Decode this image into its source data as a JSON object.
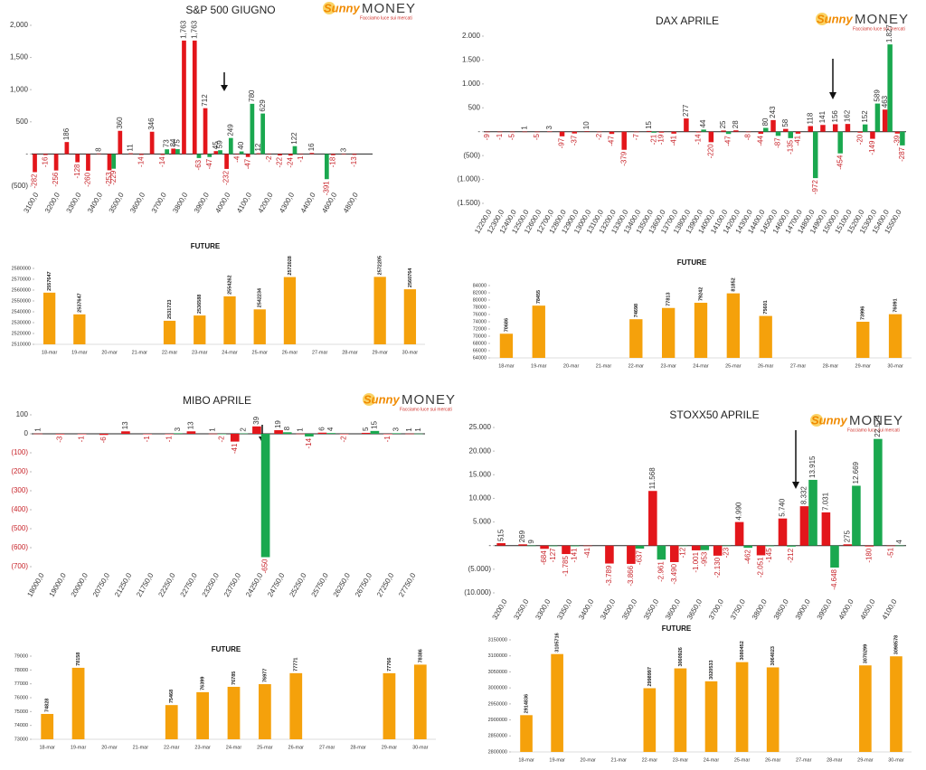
{
  "logo": {
    "brand": "Sunny",
    "brand2": "MONEY",
    "tagline": "Facciamo luce sui mercati"
  },
  "chart_data": [
    {
      "type": "bar",
      "title": "S&P 500 GIUGNO",
      "categories": [
        "3100,0",
        null,
        "3200,0",
        null,
        "3300,0",
        null,
        "3400,0",
        null,
        "3500,0",
        null,
        "3600,0",
        null,
        "3700,0",
        null,
        "3800,0",
        null,
        "3900,0",
        null,
        "4000,0",
        null,
        "4100,0",
        null,
        "4200,0",
        null,
        "4300,0",
        null,
        "4400,0",
        null,
        "4600,0",
        null,
        "4800,0",
        null
      ],
      "series": [
        {
          "color": "#e3161b",
          "values": [
            -282,
            -16,
            -256,
            186,
            -128,
            -260,
            8,
            -253,
            360,
            11,
            -14,
            346,
            -14,
            84,
            1763,
            1763,
            712,
            45,
            -232,
            -4,
            -47,
            12,
            -2,
            -22,
            -24,
            -1,
            16,
            null,
            -18,
            3,
            -13,
            null
          ],
          "value_labels": [
            "-282",
            "-16",
            "-256",
            "186",
            "-128",
            "-260",
            "8",
            "-253",
            "360",
            "11",
            "-14",
            "346",
            "-14",
            "84",
            "1,763",
            "1,763",
            "712",
            "45",
            "-232",
            "-4",
            "-47",
            "12",
            "-2",
            "-22",
            "-24",
            "-1",
            "16",
            null,
            "-18",
            "3",
            "-13",
            null
          ]
        },
        {
          "color": "#1aa84f",
          "values": [
            null,
            null,
            null,
            null,
            null,
            null,
            null,
            -229,
            null,
            null,
            null,
            null,
            73,
            75,
            null,
            -63,
            -47,
            59,
            249,
            40,
            780,
            629,
            null,
            null,
            122,
            null,
            null,
            -391,
            null,
            null,
            null,
            null
          ],
          "value_labels": [
            null,
            null,
            null,
            null,
            null,
            null,
            null,
            "-229",
            null,
            null,
            null,
            null,
            "73",
            "75",
            null,
            "-63",
            "-47",
            "59",
            "249",
            "40",
            "780",
            "629",
            null,
            null,
            "122",
            null,
            null,
            "-391",
            null,
            null,
            null,
            null
          ]
        }
      ],
      "ylim": [
        -500,
        2000
      ],
      "yticks": [
        {
          "value": -500,
          "label": "(500)"
        },
        {
          "value": 0,
          "label": "-"
        },
        500,
        {
          "value": 1000,
          "label": "1,000"
        },
        {
          "value": 1500,
          "label": "1,500"
        },
        {
          "value": 2000,
          "label": "2,000"
        }
      ]
    },
    {
      "type": "bar",
      "title": "FUTURE",
      "categories": [
        "18-mar",
        "19-mar",
        "20-mar",
        "21-mar",
        "22-mar",
        "23-mar",
        "24-mar",
        "25-mar",
        "26-mar",
        "27-mar",
        "28-mar",
        "29-mar",
        "30-mar"
      ],
      "values": [
        2557647,
        2537647,
        null,
        null,
        2531723,
        2536588,
        2554262,
        2542234,
        2572028,
        null,
        null,
        2572205,
        2560764
      ],
      "color": "#f5a10b",
      "ylim": [
        2510000,
        2580000
      ],
      "yticks": [
        2510000,
        2520000,
        2530000,
        2540000,
        2550000,
        2560000,
        2570000,
        2580000
      ]
    },
    {
      "type": "bar",
      "title": "MIBO APRILE",
      "categories": [
        "18000,0",
        "19000,0",
        "20000,0",
        "20750,0",
        "21250,0",
        "21750,0",
        "22250,0",
        "22750,0",
        "23250,0",
        "23750,0",
        "24250,0",
        "24750,0",
        "25250,0",
        "25750,0",
        "26250,0",
        "26750,0",
        "27250,0",
        "27750,0"
      ],
      "series": [
        {
          "color": "#e3161b",
          "values": [
            1,
            -3,
            -1,
            -6,
            13,
            -1,
            -1,
            13,
            1,
            -41,
            39,
            19,
            1,
            6,
            -2,
            5,
            -1,
            1
          ],
          "value_labels": [
            "1",
            "-3",
            "-1",
            "-6",
            "13",
            "-1",
            "-1",
            "13",
            "1",
            "-41",
            "39",
            "19",
            "1",
            "6",
            "-2",
            "5",
            "-1",
            "1"
          ]
        },
        {
          "color": "#1aa84f",
          "values": [
            null,
            null,
            null,
            null,
            null,
            null,
            3,
            null,
            -2,
            2,
            -650,
            8,
            -14,
            4,
            null,
            15,
            3,
            1
          ],
          "value_labels": [
            null,
            null,
            null,
            null,
            null,
            null,
            "3",
            null,
            "-2",
            "2",
            "-650",
            "8",
            "-14",
            "4",
            null,
            "15",
            "3",
            "1"
          ]
        }
      ],
      "ylim": [
        -700,
        100
      ],
      "yticks": [
        {
          "value": -700,
          "label": "(700)"
        },
        {
          "value": -600,
          "label": "(600)"
        },
        {
          "value": -500,
          "label": "(500)"
        },
        {
          "value": -400,
          "label": "(400)"
        },
        {
          "value": -300,
          "label": "(300)"
        },
        {
          "value": -200,
          "label": "(200)"
        },
        {
          "value": -100,
          "label": "(100)"
        },
        0,
        100
      ]
    },
    {
      "type": "bar",
      "title": "FUTURE",
      "categories": [
        "18-mar",
        "19-mar",
        "20-mar",
        "21-mar",
        "22-mar",
        "23-mar",
        "24-mar",
        "25-mar",
        "26-mar",
        "27-mar",
        "28-mar",
        "29-mar",
        "30-mar"
      ],
      "values": [
        74828,
        78158,
        null,
        null,
        75468,
        76399,
        76785,
        76977,
        77771,
        null,
        null,
        77766,
        78386
      ],
      "color": "#f5a10b",
      "ylim": [
        73000,
        79000
      ],
      "yticks": [
        73000,
        74000,
        75000,
        76000,
        77000,
        78000,
        79000
      ]
    },
    {
      "type": "bar",
      "title": "DAX APRILE",
      "categories": [
        "12200,0",
        "12300,0",
        "12400,0",
        "12500,0",
        "12600,0",
        "12700,0",
        "12800,0",
        "12900,0",
        "13000,0",
        "13100,0",
        "13200,0",
        "13300,0",
        "13400,0",
        "13500,0",
        "13600,0",
        "13700,0",
        "13800,0",
        "13900,0",
        "14000,0",
        "14100,0",
        "14200,0",
        "14300,0",
        "14400,0",
        "14500,0",
        "14600,0",
        "14700,0",
        "14800,0",
        "14900,0",
        "15000,0",
        "15100,0",
        "15200,0",
        "15300,0",
        "15400,0",
        "15500,0"
      ],
      "series": [
        {
          "color": "#e3161b",
          "values": [
            -9,
            -1,
            -5,
            1,
            -5,
            3,
            -97,
            -37,
            10,
            -2,
            -47,
            -379,
            -7,
            15,
            -19,
            -41,
            277,
            -14,
            -220,
            25,
            28,
            -8,
            -44,
            243,
            58,
            -41,
            118,
            141,
            156,
            162,
            -20,
            -149,
            463,
            -39
          ],
          "value_labels": [
            "-9",
            "-1",
            "-5",
            "1",
            "-5",
            "3",
            "-97",
            "-37",
            "10",
            "-2",
            "-47",
            "-379",
            "-7",
            "15",
            "-19",
            "-41",
            "277",
            "-14",
            "-220",
            "25",
            "28",
            "-8",
            "-44",
            "243",
            "58",
            "-41",
            "118",
            "141",
            "156",
            "162",
            "-20",
            "-149",
            "463",
            "-39"
          ]
        },
        {
          "color": "#1aa84f",
          "values": [
            null,
            null,
            null,
            null,
            null,
            null,
            null,
            null,
            null,
            null,
            null,
            null,
            null,
            -21,
            null,
            null,
            null,
            44,
            null,
            -47,
            null,
            null,
            80,
            -87,
            -135,
            null,
            -972,
            null,
            -454,
            null,
            152,
            589,
            1827,
            -287
          ],
          "value_labels": [
            null,
            null,
            null,
            null,
            null,
            null,
            null,
            null,
            null,
            null,
            null,
            null,
            null,
            "-21",
            null,
            null,
            null,
            "44",
            null,
            "-47",
            null,
            null,
            "80",
            "-87",
            "-135",
            null,
            "-972",
            null,
            "-454",
            null,
            "152",
            "589",
            "1.827",
            "-287"
          ]
        }
      ],
      "ylim": [
        -1500,
        2000
      ],
      "yticks": [
        {
          "value": -1500,
          "label": "(1.500)"
        },
        {
          "value": -1000,
          "label": "(1.000)"
        },
        {
          "value": -500,
          "label": "(500)"
        },
        {
          "value": 0,
          "label": "-"
        },
        500,
        {
          "value": 1000,
          "label": "1.000"
        },
        {
          "value": 1500,
          "label": "1.500"
        },
        {
          "value": 2000,
          "label": "2.000"
        }
      ]
    },
    {
      "type": "bar",
      "title": "FUTURE",
      "categories": [
        "18-mar",
        "19-mar",
        "20-mar",
        "21-mar",
        "22-mar",
        "23-mar",
        "24-mar",
        "25-mar",
        "26-mar",
        "27-mar",
        "28-mar",
        "29-mar",
        "30-mar"
      ],
      "values": [
        70686,
        78455,
        null,
        null,
        74698,
        77813,
        79242,
        81852,
        75601,
        null,
        null,
        73996,
        76091
      ],
      "color": "#f5a10b",
      "ylim": [
        64000,
        84000
      ],
      "yticks": [
        64000,
        66000,
        68000,
        70000,
        72000,
        74000,
        76000,
        78000,
        80000,
        82000,
        84000
      ]
    },
    {
      "type": "bar",
      "title": "STOXX50 APRILE",
      "categories": [
        "3200,0",
        "3250,0",
        "3300,0",
        "3350,0",
        "3400,0",
        "3450,0",
        "3500,0",
        "3550,0",
        "3600,0",
        "3650,0",
        "3700,0",
        "3750,0",
        "3800,0",
        "3850,0",
        "3900,0",
        "3950,0",
        "4000,0",
        "4050,0",
        "4100,0"
      ],
      "series": [
        {
          "color": "#e3161b",
          "values": [
            515,
            269,
            -684,
            -1785,
            -41,
            -3789,
            -3866,
            11568,
            -3490,
            -1001,
            -2130,
            4990,
            -2051,
            5740,
            8332,
            7031,
            275,
            -180,
            -51
          ],
          "value_labels": [
            "515",
            "269",
            "-684",
            "-1.785",
            "-41",
            "-3.789",
            "-3.866",
            "11.568",
            "-3.490",
            "-1.001",
            "-2.130",
            "4.990",
            "-2.051",
            "5.740",
            "8.332",
            "7.031",
            "275",
            "-180",
            "-51"
          ]
        },
        {
          "color": "#1aa84f",
          "values": [
            null,
            9,
            -127,
            -141,
            null,
            null,
            -637,
            -2961,
            -12,
            -953,
            -23,
            -462,
            -145,
            -212,
            13915,
            -4648,
            12669,
            22574,
            4
          ],
          "value_labels": [
            null,
            "9",
            "-127",
            "-141",
            null,
            null,
            "-637",
            "-2.961",
            "-12",
            "-953",
            "-23",
            "-462",
            "-145",
            "-212",
            "13.915",
            "-4.648",
            "12.669",
            "22.574",
            "4"
          ]
        }
      ],
      "ylim": [
        -10000,
        25000
      ],
      "yticks": [
        {
          "value": -10000,
          "label": "(10.000)"
        },
        {
          "value": -5000,
          "label": "(5.000)"
        },
        {
          "value": 0,
          "label": "-"
        },
        {
          "value": 5000,
          "label": "5.000"
        },
        {
          "value": 10000,
          "label": "10.000"
        },
        {
          "value": 15000,
          "label": "15.000"
        },
        {
          "value": 20000,
          "label": "20.000"
        },
        {
          "value": 25000,
          "label": "25.000"
        }
      ]
    },
    {
      "type": "bar",
      "title": "FUTURE",
      "categories": [
        "18-mar",
        "19-mar",
        "20-mar",
        "21-mar",
        "22-mar",
        "23-mar",
        "24-mar",
        "25-mar",
        "26-mar",
        "27-mar",
        "28-mar",
        "29-mar",
        "30-mar"
      ],
      "values": [
        2914836,
        3105716,
        null,
        null,
        2998997,
        3060926,
        3020533,
        3080452,
        3064023,
        null,
        null,
        3070299,
        3098578
      ],
      "color": "#f5a10b",
      "ylim": [
        2800000,
        3150000
      ],
      "yticks": [
        2800000,
        2850000,
        2900000,
        2950000,
        3000000,
        3050000,
        3100000,
        3150000
      ]
    }
  ]
}
